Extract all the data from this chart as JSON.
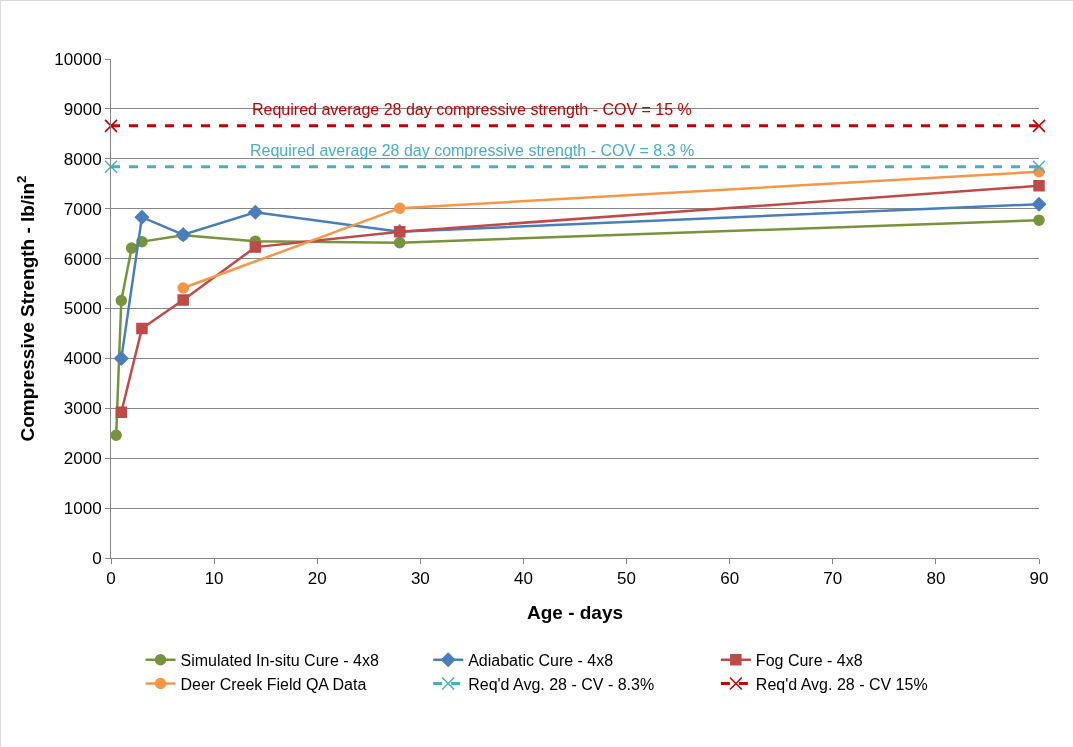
{
  "chart_data": {
    "type": "line",
    "xlabel": "Age - days",
    "ylabel": "Compressive Strength - lb/in$^{2}$",
    "xlim": [
      0,
      90
    ],
    "xticks": [
      0,
      10,
      20,
      30,
      40,
      50,
      60,
      70,
      80,
      90
    ],
    "ylim": [
      0,
      10000
    ],
    "yticks": [
      0,
      1000,
      2000,
      3000,
      4000,
      5000,
      6000,
      7000,
      8000,
      9000,
      10000
    ],
    "grid": "y",
    "legend": "bottom",
    "series": [
      {
        "name": "Simulated In-situ Cure - 4x8",
        "color": "#77933c",
        "marker": "circle",
        "line_style": "solid",
        "x": [
          0.5,
          1,
          2,
          3,
          7,
          14,
          28,
          90
        ],
        "values": [
          2460,
          5160,
          6210,
          6340,
          6470,
          6350,
          6320,
          6770
        ]
      },
      {
        "name": "Adiabatic Cure - 4x8",
        "color": "#4a7ebb",
        "marker": "diamond",
        "line_style": "solid",
        "x": [
          1,
          3,
          7,
          14,
          28,
          90
        ],
        "values": [
          4000,
          6830,
          6480,
          6930,
          6540,
          7090
        ]
      },
      {
        "name": "Fog Cure - 4x8",
        "color": "#be4b48",
        "marker": "square",
        "line_style": "solid",
        "x": [
          1,
          3,
          7,
          14,
          28,
          90
        ],
        "values": [
          2920,
          4600,
          5170,
          6230,
          6540,
          7460
        ]
      },
      {
        "name": "Deer Creek Field QA Data",
        "color": "#f79646",
        "marker": "circle",
        "line_style": "solid",
        "x": [
          7,
          28,
          90
        ],
        "values": [
          5410,
          7010,
          7740
        ]
      },
      {
        "name": "Req'd Avg. 28 - CV - 8.3%",
        "color": "#4bacc6",
        "marker": "cross",
        "line_style": "dashed",
        "x": [
          0,
          90
        ],
        "values": [
          7840,
          7840
        ]
      },
      {
        "name": "Req'd Avg. 28 - CV 15%",
        "color": "#c00000",
        "marker": "cross",
        "line_style": "dashed",
        "x": [
          0,
          90
        ],
        "values": [
          8660,
          8660
        ]
      }
    ],
    "annotations": [
      {
        "text": "Required average 28 day compressive strength - COV = 15 %",
        "x": 35,
        "y": 8660
      },
      {
        "text": "Required average 28 day compressive strength - COV = 8.3 %",
        "x": 35,
        "y": 7840
      }
    ]
  }
}
